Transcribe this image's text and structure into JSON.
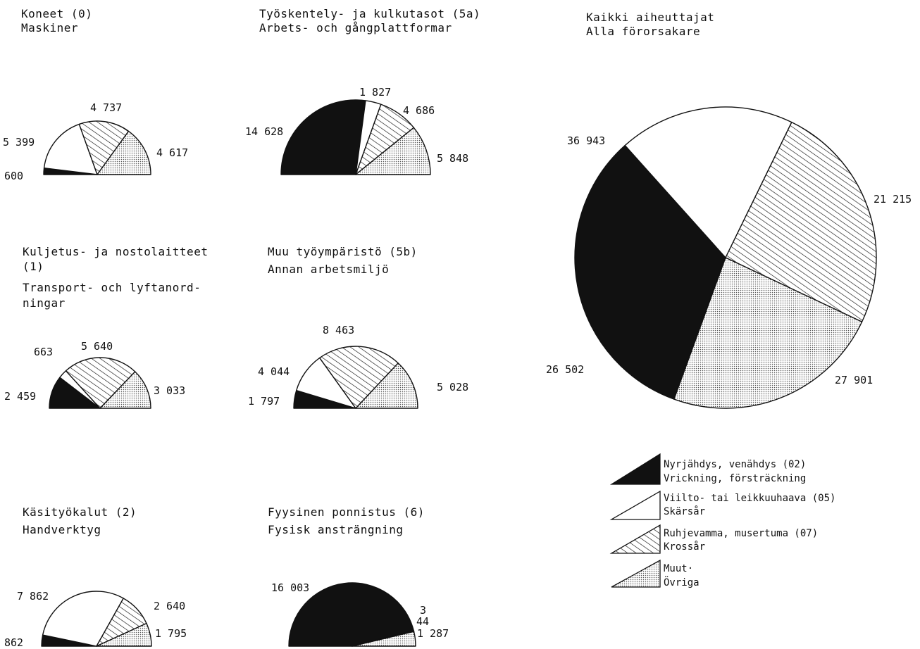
{
  "figure": {
    "colors": {
      "ink": "#111111",
      "paper": "#ffffff",
      "dots": "#555555"
    },
    "category_icons": [
      "solid-black-fill",
      "white-fill",
      "diagonal-hatch",
      "dotted-fill"
    ]
  },
  "legend": {
    "items": [
      {
        "line1": "Nyrjähdys, venähdys (02)",
        "line2": "Vrickning, försträckning"
      },
      {
        "line1": "Viilto- tai leikkuuhaava (05)",
        "line2": "Skärsår"
      },
      {
        "line1": "Ruhjevamma, musertuma (07)",
        "line2": "Krossår"
      },
      {
        "line1": "Muut·",
        "line2": "Övriga"
      }
    ]
  },
  "chart_data": [
    {
      "type": "pie",
      "variant": "half",
      "title_lines": [
        "Koneet (0)",
        "Maskiner"
      ],
      "categories": [
        "Nyrjähdys, venähdys (02)",
        "Viilto- tai leikkuuhaava (05)",
        "Ruhjevamma, musertuma (07)",
        "Muut"
      ],
      "values": [
        600,
        5399,
        4737,
        4617
      ],
      "value_labels": [
        "600",
        "5 399",
        "4 737",
        "4 617"
      ]
    },
    {
      "type": "pie",
      "variant": "half",
      "title_lines": [
        "Työskentely- ja kulkutasot (5a)",
        "Arbets- och gångplattformar"
      ],
      "categories": [
        "Nyrjähdys, venähdys (02)",
        "Viilto- tai leikkuuhaava (05)",
        "Ruhjevamma, musertuma (07)",
        "Muut"
      ],
      "values": [
        14628,
        1827,
        4686,
        5848
      ],
      "value_labels": [
        "14 628",
        "1 827",
        "4 686",
        "5 848"
      ]
    },
    {
      "type": "pie",
      "variant": "full",
      "title_lines": [
        "Kaikki aiheuttajat",
        "Alla förorsakare"
      ],
      "categories": [
        "Nyrjähdys, venähdys (02)",
        "Viilto- tai leikkuuhaava (05)",
        "Ruhjevamma, musertuma (07)",
        "Muut"
      ],
      "values": [
        36943,
        21215,
        27901,
        26502
      ],
      "value_labels": [
        "36 943",
        "21 215",
        "27 901",
        "26 502"
      ]
    },
    {
      "type": "pie",
      "variant": "half",
      "title_lines": [
        "Kuljetus- ja nostolaitteet",
        "(1)",
        "Transport- och lyftanord-",
        "ningar"
      ],
      "categories": [
        "Nyrjähdys, venähdys (02)",
        "Viilto- tai leikkuuhaava (05)",
        "Ruhjevamma, musertuma (07)",
        "Muut"
      ],
      "values": [
        2459,
        663,
        5640,
        3033
      ],
      "value_labels": [
        "2 459",
        "663",
        "5 640",
        "3 033"
      ]
    },
    {
      "type": "pie",
      "variant": "half",
      "title_lines": [
        "Muu työympäristö (5b)",
        "Annan arbetsmiljö"
      ],
      "categories": [
        "Nyrjähdys, venähdys (02)",
        "Viilto- tai leikkuuhaava (05)",
        "Ruhjevamma, musertuma (07)",
        "Muut"
      ],
      "values": [
        1797,
        4044,
        8463,
        5028
      ],
      "value_labels": [
        "1 797",
        "4 044",
        "8 463",
        "5 028"
      ]
    },
    {
      "type": "pie",
      "variant": "half",
      "title_lines": [
        "Käsityökalut (2)",
        "Handverktyg"
      ],
      "categories": [
        "Nyrjähdys, venähdys (02)",
        "Viilto- tai leikkuuhaava (05)",
        "Ruhjevamma, musertuma (07)",
        "Muut"
      ],
      "values": [
        862,
        7862,
        2640,
        1795
      ],
      "value_labels": [
        "862",
        "7 862",
        "2 640",
        "1 795"
      ]
    },
    {
      "type": "pie",
      "variant": "half",
      "title_lines": [
        "Fyysinen ponnistus (6)",
        "Fysisk ansträngning"
      ],
      "categories": [
        "Nyrjähdys, venähdys (02)",
        "Viilto- tai leikkuuhaava (05)",
        "Ruhjevamma, musertuma (07)",
        "Muut"
      ],
      "values": [
        16003,
        3,
        44,
        1287
      ],
      "value_labels": [
        "16 003",
        "3",
        "44",
        "1 287"
      ]
    }
  ]
}
